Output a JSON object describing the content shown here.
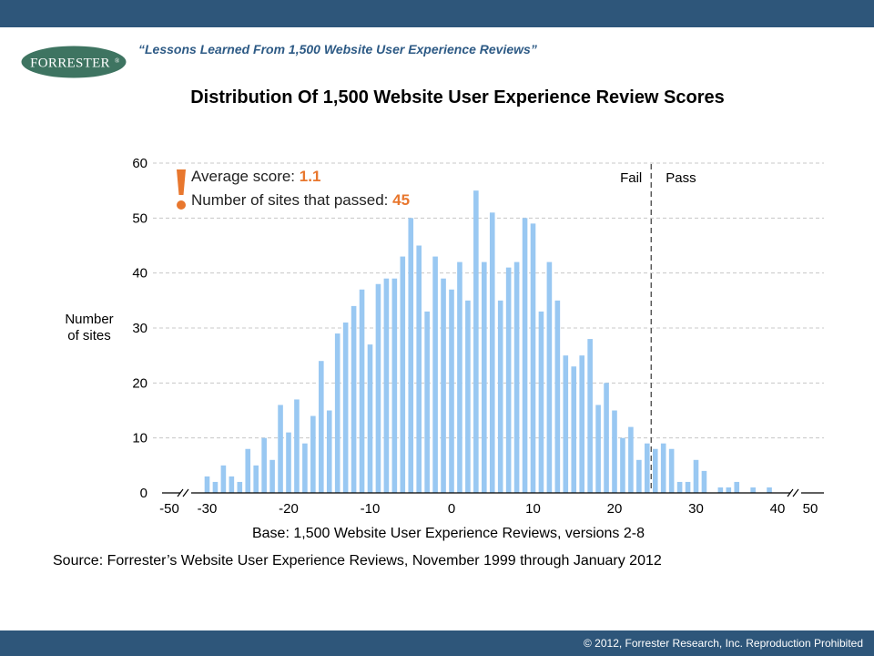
{
  "header": {
    "subtitle": "“Lessons Learned From 1,500 Website User Experience Reviews”",
    "logo_text": "FORRESTER",
    "logo_mark": "®"
  },
  "footer": {
    "copyright": "© 2012, Forrester Research, Inc. Reproduction Prohibited"
  },
  "colors": {
    "bar": "#99c8f2",
    "brand_blue": "#2e567a",
    "accent_orange": "#e8772e",
    "logo_green": "#3e7461",
    "subtitle_blue": "#2d5a85"
  },
  "stats": {
    "avg_label": "Average score: ",
    "avg_value": "1.1",
    "passed_label": "Number of sites that passed: ",
    "passed_value": "45"
  },
  "chart_data": {
    "type": "bar",
    "title": "Distribution Of 1,500 Website User Experience Review Scores",
    "xlabel": "",
    "ylabel": "Number of sites",
    "ylabel_lines": [
      "Number",
      "of sites"
    ],
    "xlim": [
      -50,
      50
    ],
    "ylim": [
      0,
      60
    ],
    "x_ticks": [
      "-50",
      "-30",
      "-20",
      "-10",
      "0",
      "10",
      "20",
      "30",
      "40",
      "50"
    ],
    "y_ticks": [
      "0",
      "10",
      "20",
      "30",
      "40",
      "50",
      "60"
    ],
    "axis_break": "between -50 and -30 and between 40 and 50",
    "grid": "horizontal dashed",
    "threshold": {
      "x": 24.5,
      "fail_label": "Fail",
      "pass_label": "Pass"
    },
    "x": [
      -30,
      -29,
      -28,
      -27,
      -26,
      -25,
      -24,
      -23,
      -22,
      -21,
      -20,
      -19,
      -18,
      -17,
      -16,
      -15,
      -14,
      -13,
      -12,
      -11,
      -10,
      -9,
      -8,
      -7,
      -6,
      -5,
      -4,
      -3,
      -2,
      -1,
      0,
      1,
      2,
      3,
      4,
      5,
      6,
      7,
      8,
      9,
      10,
      11,
      12,
      13,
      14,
      15,
      16,
      17,
      18,
      19,
      20,
      21,
      22,
      23,
      24,
      25,
      26,
      27,
      28,
      29,
      30,
      31,
      32,
      33,
      34,
      35,
      36,
      37,
      38,
      39
    ],
    "values": [
      3,
      2,
      5,
      3,
      2,
      8,
      5,
      10,
      6,
      16,
      11,
      17,
      9,
      14,
      24,
      15,
      29,
      31,
      34,
      37,
      27,
      38,
      39,
      39,
      43,
      50,
      45,
      33,
      43,
      39,
      37,
      42,
      35,
      55,
      42,
      51,
      35,
      41,
      42,
      50,
      49,
      33,
      42,
      35,
      25,
      23,
      25,
      28,
      16,
      20,
      15,
      10,
      12,
      6,
      9,
      8,
      9,
      8,
      2,
      2,
      6,
      4,
      0,
      1,
      1,
      2,
      0,
      1,
      0,
      1
    ],
    "base_note": "Base: 1,500 Website User Experience Reviews, versions 2-8",
    "source_note": "Source: Forrester’s Website User Experience Reviews, November 1999 through January 2012"
  }
}
